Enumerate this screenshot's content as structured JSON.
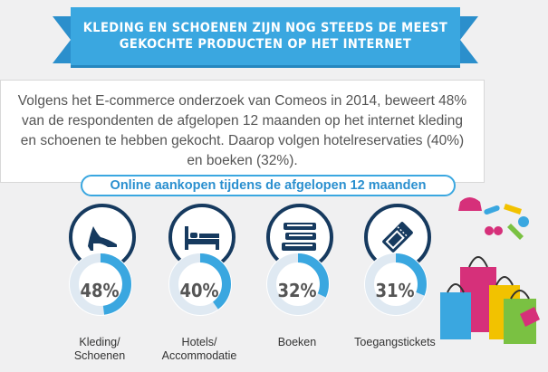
{
  "banner": {
    "line1": "KLEDING EN SCHOENEN ZIJN NOG STEEDS DE MEEST",
    "line2": "GEKOCHTE PRODUCTEN OP HET INTERNET"
  },
  "intro": {
    "text": "Volgens het E-commerce onderzoek van Comeos in 2014, beweert 48% van de respondenten de afgelopen 12 maanden op het internet kleding en schoenen te hebben gekocht. Daarop volgen hotelreservaties (40%) en boeken (32%)."
  },
  "colors": {
    "accent": "#3aa7e0",
    "ring_track": "#dfe9f2",
    "icon_dark": "#163a5f"
  },
  "chart_data": {
    "type": "bar",
    "title": "Online aankopen tijdens de afgelopen 12 maanden",
    "categories": [
      "Kleding/ Schoenen",
      "Hotels/ Accommodatie",
      "Boeken",
      "Toegangstickets"
    ],
    "values": [
      48,
      40,
      32,
      31
    ],
    "value_labels": [
      "48%",
      "40%",
      "32%",
      "31%"
    ],
    "icons": [
      "high-heel-shoe-icon",
      "bed-icon",
      "books-icon",
      "ticket-icon"
    ],
    "ylim": [
      0,
      100
    ],
    "unit": "%"
  }
}
